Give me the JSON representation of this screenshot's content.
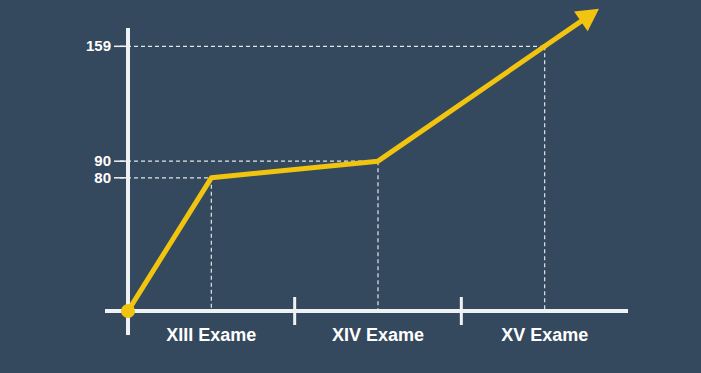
{
  "chart_data": {
    "type": "line",
    "categories": [
      null,
      "XIII Exame",
      "XIV Exame",
      "XV Exame"
    ],
    "values": [
      0,
      80,
      90,
      159
    ],
    "color": "#f1c40f",
    "ylim": [
      0,
      170
    ],
    "yticks": [
      80,
      90,
      159
    ]
  }
}
